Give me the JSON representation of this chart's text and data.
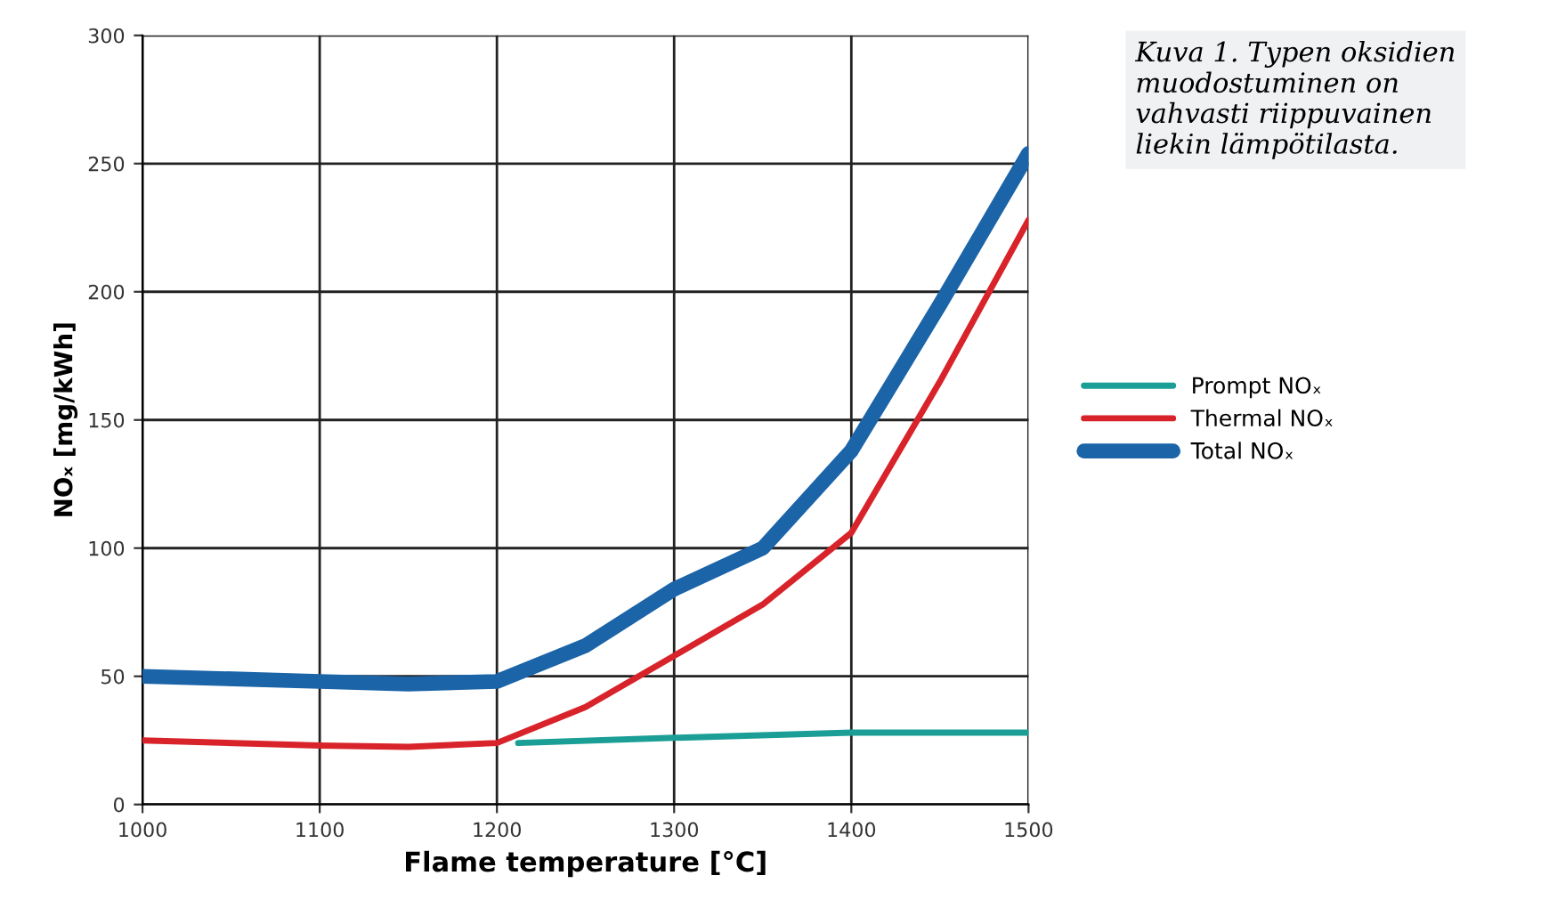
{
  "chart_data": {
    "type": "line",
    "xlabel": "Flame temperature [°C]",
    "ylabel": "NOₓ [mg/kWh]",
    "annotations": [
      "Kuva 1. Typen oksidien\nmuodostuminen on\nvahvasti riippuvainen\nliekin lämpötilasta."
    ],
    "xlim": [
      1000,
      1500
    ],
    "xticks": [
      1000,
      1100,
      1200,
      1300,
      1400,
      1500
    ],
    "ylim": [
      0,
      300
    ],
    "yticks": [
      0,
      50,
      100,
      150,
      200,
      250,
      300
    ],
    "grid": true,
    "legend": "right",
    "marker": "none",
    "line_style": "solid",
    "series": [
      {
        "name": "Prompt NOₓ",
        "color": "#1a9e96",
        "x": [
          1212,
          1300,
          1400,
          1500
        ],
        "values": [
          24,
          26,
          28,
          28
        ]
      },
      {
        "name": "Thermal NOₓ",
        "color": "#d8232a",
        "x": [
          1000,
          1100,
          1150,
          1200,
          1250,
          1300,
          1350,
          1400,
          1450,
          1500
        ],
        "values": [
          25,
          23,
          22.5,
          24,
          38,
          58,
          78,
          106,
          165,
          228
        ]
      },
      {
        "name": "Total NOₓ",
        "color": "#1b64a8",
        "x": [
          1000,
          1100,
          1150,
          1200,
          1250,
          1300,
          1350,
          1400,
          1450,
          1500
        ],
        "values": [
          50,
          48,
          47,
          48,
          62,
          84,
          100,
          138,
          195,
          254
        ]
      }
    ]
  }
}
